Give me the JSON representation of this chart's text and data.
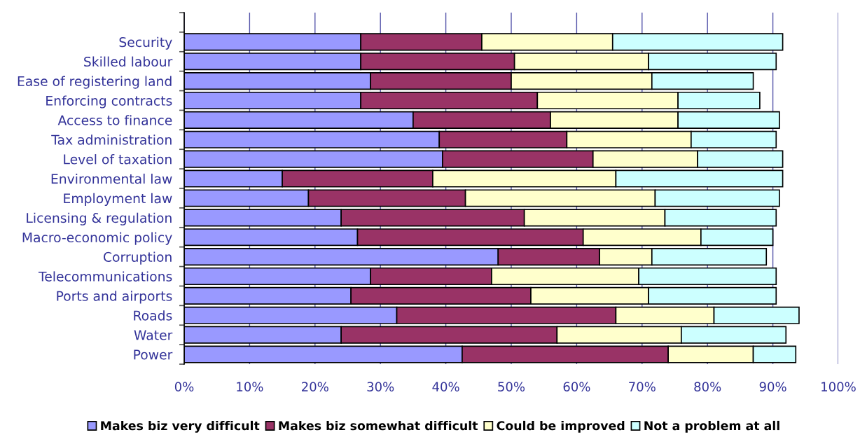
{
  "chart_data": {
    "type": "bar",
    "orientation": "horizontal",
    "stacked": true,
    "categories": [
      "Security",
      "Skilled labour",
      "Ease of registering land",
      "Enforcing contracts",
      "Access to finance",
      "Tax administration",
      "Level of taxation",
      "Environmental law",
      "Employment law",
      "Licensing & regulation",
      "Macro-economic policy",
      "Corruption",
      "Telecommunications",
      "Ports and airports",
      "Roads",
      "Water",
      "Power"
    ],
    "series": [
      {
        "name": "Makes biz very difficult",
        "color": "#9999ff",
        "values": [
          27,
          27,
          28.5,
          27,
          35,
          39,
          39.5,
          15,
          19,
          24,
          26.5,
          48,
          28.5,
          25.5,
          32.5,
          24,
          42.5
        ]
      },
      {
        "name": "Makes biz somewhat difficult",
        "color": "#993366",
        "values": [
          18.5,
          23.5,
          21.5,
          27,
          21,
          19.5,
          23,
          23,
          24,
          28,
          34.5,
          15.5,
          18.5,
          27.5,
          33.5,
          33,
          31.5
        ]
      },
      {
        "name": "Could be improved",
        "color": "#ffffcc",
        "values": [
          20,
          20.5,
          21.5,
          21.5,
          19.5,
          19,
          16,
          28,
          29,
          21.5,
          18,
          8,
          22.5,
          18,
          15,
          19,
          13
        ]
      },
      {
        "name": "Not a problem at all",
        "color": "#ccffff",
        "values": [
          26,
          19.5,
          15.5,
          12.5,
          15.5,
          13,
          13,
          25.5,
          19,
          17,
          11,
          17.5,
          21,
          19.5,
          13,
          16,
          6.5
        ]
      }
    ],
    "xlim": [
      0,
      100
    ],
    "xticks": [
      {
        "value": 0,
        "label": "0%"
      },
      {
        "value": 10,
        "label": "10%"
      },
      {
        "value": 20,
        "label": "20%"
      },
      {
        "value": 30,
        "label": "30%"
      },
      {
        "value": 40,
        "label": "40%"
      },
      {
        "value": 50,
        "label": "50%"
      },
      {
        "value": 60,
        "label": "60%"
      },
      {
        "value": 70,
        "label": "70%"
      },
      {
        "value": 80,
        "label": "80%"
      },
      {
        "value": 90,
        "label": "90%"
      },
      {
        "value": 100,
        "label": "100%"
      }
    ],
    "grid": "x",
    "legend": "bottom"
  }
}
